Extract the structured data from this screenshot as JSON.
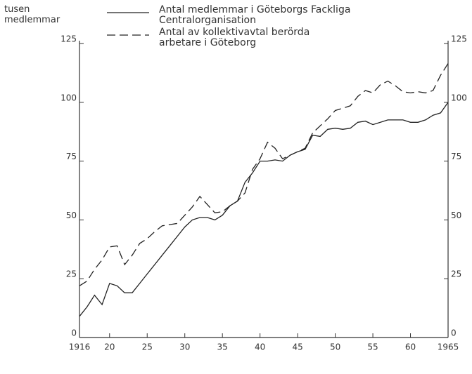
{
  "chart_data": {
    "type": "line",
    "y_label": "tusen\nmedlemmar",
    "x": [
      1916,
      1917,
      1918,
      1919,
      1920,
      1921,
      1922,
      1923,
      1924,
      1925,
      1926,
      1927,
      1928,
      1929,
      1930,
      1931,
      1932,
      1933,
      1934,
      1935,
      1936,
      1937,
      1938,
      1939,
      1940,
      1941,
      1942,
      1943,
      1944,
      1945,
      1946,
      1947,
      1948,
      1949,
      1950,
      1951,
      1952,
      1953,
      1954,
      1955,
      1956,
      1957,
      1958,
      1959,
      1960,
      1961,
      1962,
      1963,
      1964,
      1965
    ],
    "series": [
      {
        "name": "Antal medlemmar i Göteborgs Fackliga\nCentralorganisation",
        "color": "#222222",
        "line_style": "solid",
        "values": [
          9,
          13,
          18,
          14,
          23,
          22,
          19,
          19,
          23,
          27,
          31,
          35,
          39,
          43,
          47,
          50,
          51,
          51,
          50,
          52,
          56,
          58,
          66,
          70,
          75,
          75,
          75.5,
          75,
          77.5,
          79,
          80,
          86,
          85.5,
          88.5,
          89,
          88.5,
          89,
          91.5,
          92,
          90.5,
          91.5,
          92.5,
          92.5,
          92.5,
          91.5,
          91.5,
          92.5,
          94.5,
          95.5,
          100
        ]
      },
      {
        "name": "Antal av kollektivavtal berörda\narbetare i Göteborg",
        "color": "#222222",
        "line_style": "dashed",
        "values": [
          22,
          24,
          29,
          33,
          38.5,
          39,
          31,
          35,
          40,
          42,
          45,
          47.5,
          48,
          48.5,
          52,
          55.5,
          60,
          56.5,
          53,
          53.5,
          56,
          58,
          61.5,
          71.5,
          76,
          83,
          80.5,
          76,
          77.5,
          79,
          80.5,
          87,
          90,
          93,
          96.5,
          97.5,
          98.5,
          102.5,
          105,
          104,
          107.5,
          109,
          107,
          104.5,
          104,
          104.5,
          104,
          105,
          111.5,
          116.5
        ]
      }
    ],
    "xlim": [
      1916,
      1965
    ],
    "xticks": [
      1916,
      {
        "value": 1920,
        "label": "20"
      },
      {
        "value": 1925,
        "label": "25"
      },
      {
        "value": 1930,
        "label": "30"
      },
      {
        "value": 1935,
        "label": "35"
      },
      {
        "value": 1940,
        "label": "40"
      },
      {
        "value": 1945,
        "label": "45"
      },
      {
        "value": 1950,
        "label": "50"
      },
      {
        "value": 1955,
        "label": "55"
      },
      {
        "value": 1960,
        "label": "60"
      },
      1965
    ],
    "ylim": [
      0,
      125
    ],
    "yticks": [
      0,
      25,
      50,
      75,
      100,
      125
    ],
    "y2lim": [
      0,
      125
    ],
    "y2ticks": [
      0,
      25,
      50,
      75,
      100,
      125
    ]
  }
}
